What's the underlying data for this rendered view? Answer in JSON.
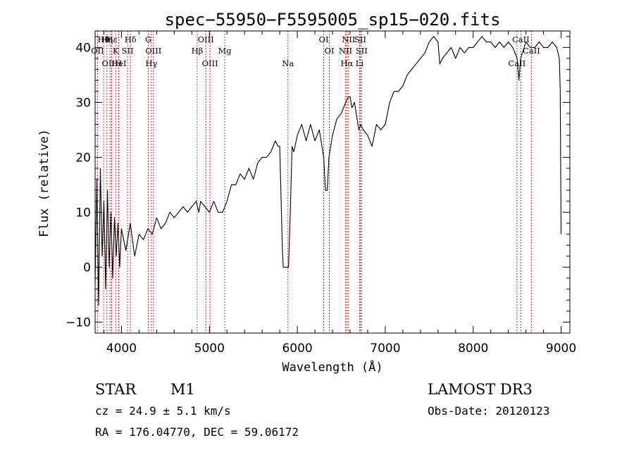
{
  "chart_data": {
    "type": "line",
    "title": "spec−55950−F5595005_sp15−020.fits",
    "xlabel": "Wavelength (Å)",
    "ylabel": "Flux (relative)",
    "xlim": [
      3700,
      9100
    ],
    "ylim": [
      -12,
      43
    ],
    "xticks": [
      4000,
      5000,
      6000,
      7000,
      8000,
      9000
    ],
    "yticks": [
      -10,
      0,
      10,
      20,
      30,
      40
    ],
    "grid": false,
    "series": [
      {
        "color": "#000000",
        "x": [
          3700,
          3720,
          3740,
          3760,
          3780,
          3800,
          3820,
          3840,
          3860,
          3880,
          3900,
          3920,
          3940,
          3960,
          3980,
          4000,
          4050,
          4100,
          4150,
          4200,
          4250,
          4300,
          4350,
          4400,
          4450,
          4500,
          4550,
          4600,
          4650,
          4700,
          4750,
          4800,
          4850,
          4880,
          4900,
          4950,
          5000,
          5050,
          5100,
          5150,
          5200,
          5250,
          5300,
          5350,
          5400,
          5450,
          5500,
          5550,
          5600,
          5650,
          5700,
          5750,
          5780,
          5800,
          5830,
          5840,
          5860,
          5880,
          5900,
          5920,
          5940,
          5960,
          6000,
          6050,
          6100,
          6150,
          6200,
          6250,
          6300,
          6320,
          6340,
          6360,
          6400,
          6450,
          6500,
          6550,
          6580,
          6600,
          6620,
          6650,
          6700,
          6720,
          6750,
          6800,
          6850,
          6900,
          6950,
          7000,
          7050,
          7100,
          7150,
          7200,
          7250,
          7300,
          7350,
          7400,
          7450,
          7500,
          7550,
          7600,
          7620,
          7650,
          7700,
          7750,
          7800,
          7850,
          7900,
          7950,
          8000,
          8050,
          8100,
          8150,
          8200,
          8250,
          8300,
          8350,
          8400,
          8450,
          8500,
          8520,
          8540,
          8560,
          8600,
          8650,
          8700,
          8750,
          8800,
          8850,
          8900,
          8950,
          8980,
          8990,
          9000
        ],
        "y": [
          -3,
          16,
          -7,
          18,
          2,
          12,
          -4,
          14,
          0,
          10,
          -2,
          9,
          2,
          8,
          0,
          7,
          3,
          8,
          2,
          6,
          5,
          7,
          6,
          9,
          7,
          8,
          10,
          9,
          10,
          11,
          10,
          11,
          12,
          10,
          12,
          11,
          10,
          12,
          10,
          10,
          12,
          15,
          15,
          17,
          16,
          18,
          16,
          19,
          20,
          20,
          21,
          23,
          22,
          22,
          3,
          0,
          0,
          0,
          0,
          10,
          22,
          21,
          24,
          26,
          23,
          26,
          23,
          25,
          20,
          14,
          14,
          20,
          24,
          27,
          28,
          30,
          31,
          31,
          29,
          30,
          25,
          26,
          25,
          24,
          22,
          26,
          25,
          26,
          30,
          32,
          32,
          33,
          35,
          36,
          37,
          38,
          39,
          41,
          42,
          41,
          37,
          38,
          39,
          40,
          38,
          40,
          39,
          40,
          40,
          41,
          42,
          41,
          41,
          40,
          41,
          40,
          41,
          40,
          38,
          34,
          38,
          39,
          41,
          40,
          40,
          41,
          40,
          40,
          41,
          40,
          38,
          32,
          6
        ]
      }
    ],
    "line_markers": [
      {
        "label": "Hθ",
        "x": 3797
      },
      {
        "label": "OII",
        "x": 3727
      },
      {
        "label": "OIII",
        "x": 3869
      },
      {
        "label": "Hε",
        "x": 3889
      },
      {
        "label": "K",
        "x": 3934
      },
      {
        "label": "HeI",
        "x": 3970
      },
      {
        "label": "Hη",
        "x": 3835
      },
      {
        "label": "SII",
        "x": 4069
      },
      {
        "label": "H",
        "x": 3968
      },
      {
        "label": "Hδ",
        "x": 4102
      },
      {
        "label": "OIII",
        "x": 4363
      },
      {
        "label": "Hγ",
        "x": 4340
      },
      {
        "label": "G",
        "x": 4305
      },
      {
        "label": "Hβ",
        "x": 4861
      },
      {
        "label": "OIII",
        "x": 5007
      },
      {
        "label": "OIII",
        "x": 4959
      },
      {
        "label": "Mg",
        "x": 5175
      },
      {
        "label": "Na",
        "x": 5893
      },
      {
        "label": "OI",
        "x": 6300
      },
      {
        "label": "OI",
        "x": 6364
      },
      {
        "label": "Hα",
        "x": 6563
      },
      {
        "label": "SII",
        "x": 6716
      },
      {
        "label": "NII",
        "x": 6548
      },
      {
        "label": "Li",
        "x": 6708
      },
      {
        "label": "NII",
        "x": 6583
      },
      {
        "label": "SII",
        "x": 6731
      },
      {
        "label": "CaII",
        "x": 8498
      },
      {
        "label": "CaII",
        "x": 8542
      },
      {
        "label": "CaII",
        "x": 8662
      }
    ]
  },
  "info": {
    "star_label": "STAR",
    "subclass": "M1",
    "survey": "LAMOST DR3",
    "cz_line": "cz = 24.9 ± 5.1 km/s",
    "obs_date": "Obs-Date: 20120123",
    "coords": "RA = 176.04770, DEC =  59.06172"
  }
}
